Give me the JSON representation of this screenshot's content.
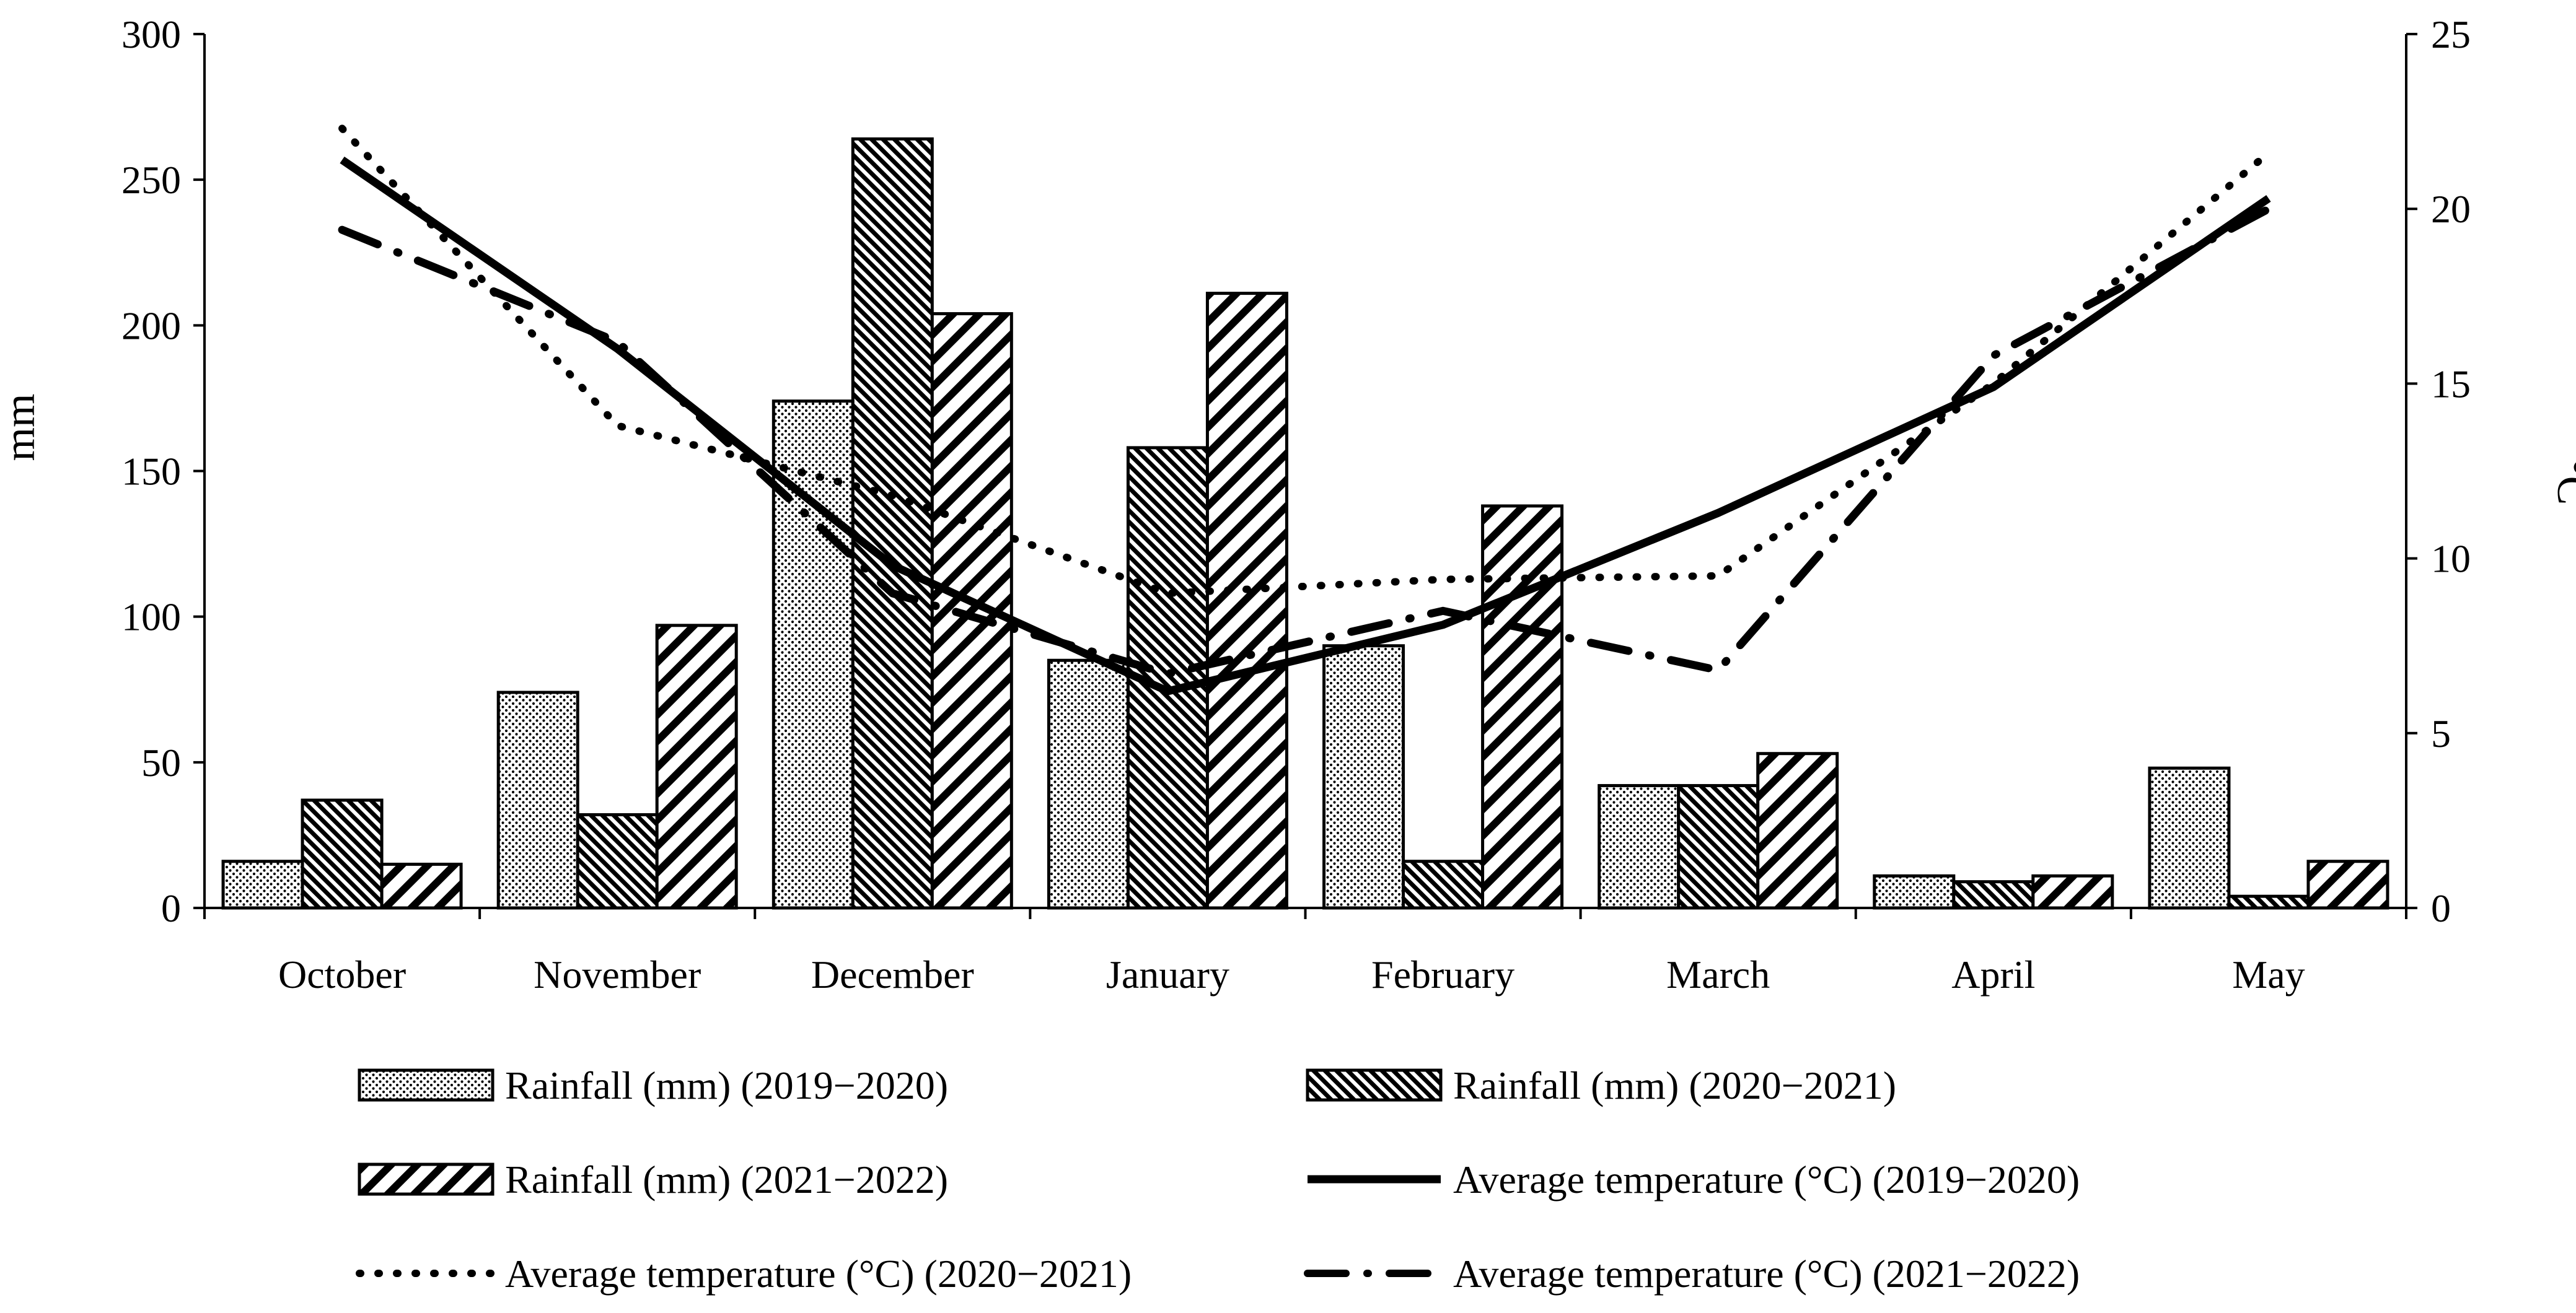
{
  "chart_data": {
    "type": "bar+line",
    "title": "",
    "categories": [
      "October",
      "November",
      "December",
      "January",
      "February",
      "March",
      "April",
      "May"
    ],
    "y_left": {
      "label": "mm",
      "min": 0,
      "max": 300,
      "ticks": [
        "0",
        "50",
        "100",
        "150",
        "200",
        "250",
        "300"
      ]
    },
    "y_right": {
      "label": "°C",
      "min": 0,
      "max": 25,
      "ticks": [
        "0",
        "5",
        "10",
        "15",
        "20",
        "25"
      ]
    },
    "bar_series": [
      {
        "name": "Rainfall (mm) (2019−2020)",
        "pattern": "dots",
        "values": [
          16,
          74,
          174,
          85,
          90,
          42,
          11,
          48
        ]
      },
      {
        "name": "Rainfall (mm) (2020−2021)",
        "pattern": "dense-diagonal",
        "values": [
          37,
          32,
          264,
          158,
          16,
          42,
          9,
          4
        ]
      },
      {
        "name": "Rainfall (mm) (2021−2022)",
        "pattern": "wide-diagonal",
        "values": [
          15,
          97,
          204,
          211,
          138,
          53,
          11,
          16
        ]
      }
    ],
    "line_series": [
      {
        "name": "Average temperature (°C) (2019−2020)",
        "style": "solid",
        "values": [
          21.4,
          16.0,
          9.8,
          6.2,
          8.1,
          11.3,
          14.9,
          20.3
        ]
      },
      {
        "name": "Average temperature (°C) (2020−2021)",
        "style": "dotted",
        "values": [
          22.3,
          13.8,
          11.8,
          9.0,
          9.4,
          9.5,
          15.0,
          21.6
        ]
      },
      {
        "name": "Average temperature (°C) (2021−2022)",
        "style": "dash-dot",
        "values": [
          19.4,
          16.2,
          9.0,
          6.7,
          8.5,
          6.8,
          15.8,
          20.0
        ]
      }
    ],
    "grid": false,
    "legend_position": "bottom"
  },
  "colors": {
    "ink": "#000000",
    "background": "#ffffff"
  }
}
